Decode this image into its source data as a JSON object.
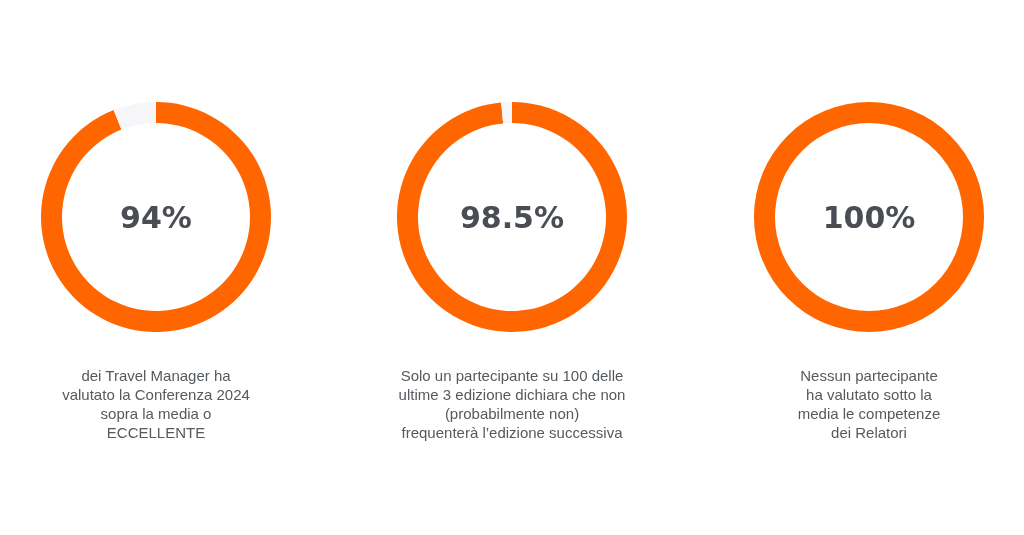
{
  "chart_data": [
    {
      "type": "donut",
      "categories": [
        null,
        null
      ],
      "values": [
        94,
        6
      ],
      "colors": [
        "#ff6600",
        "#f6f6f8"
      ],
      "value_labels": [
        "94%",
        null
      ],
      "annotations": [
        "dei Travel Manager ha\nvalutato la Conferenza 2024\nsopra la media o\nECCELLENTE"
      ]
    },
    {
      "type": "donut",
      "categories": [
        null,
        null
      ],
      "values": [
        98.5,
        1.5
      ],
      "colors": [
        "#ff6600",
        "#f6f6f8"
      ],
      "value_labels": [
        "98.5%",
        null
      ],
      "annotations": [
        "Solo un partecipante su 100 delle\nultime 3 edizione dichiara che non\n(probabilmente non)\nfrequenterà l’edizione successiva"
      ]
    },
    {
      "type": "donut",
      "categories": [
        null
      ],
      "values": [
        100
      ],
      "colors": [
        "#ff6600"
      ],
      "value_labels": [
        "100%"
      ],
      "annotations": [
        "Nessun partecipante\nha valutato sotto la\nmedia le competenze\ndei Relatori"
      ]
    }
  ]
}
